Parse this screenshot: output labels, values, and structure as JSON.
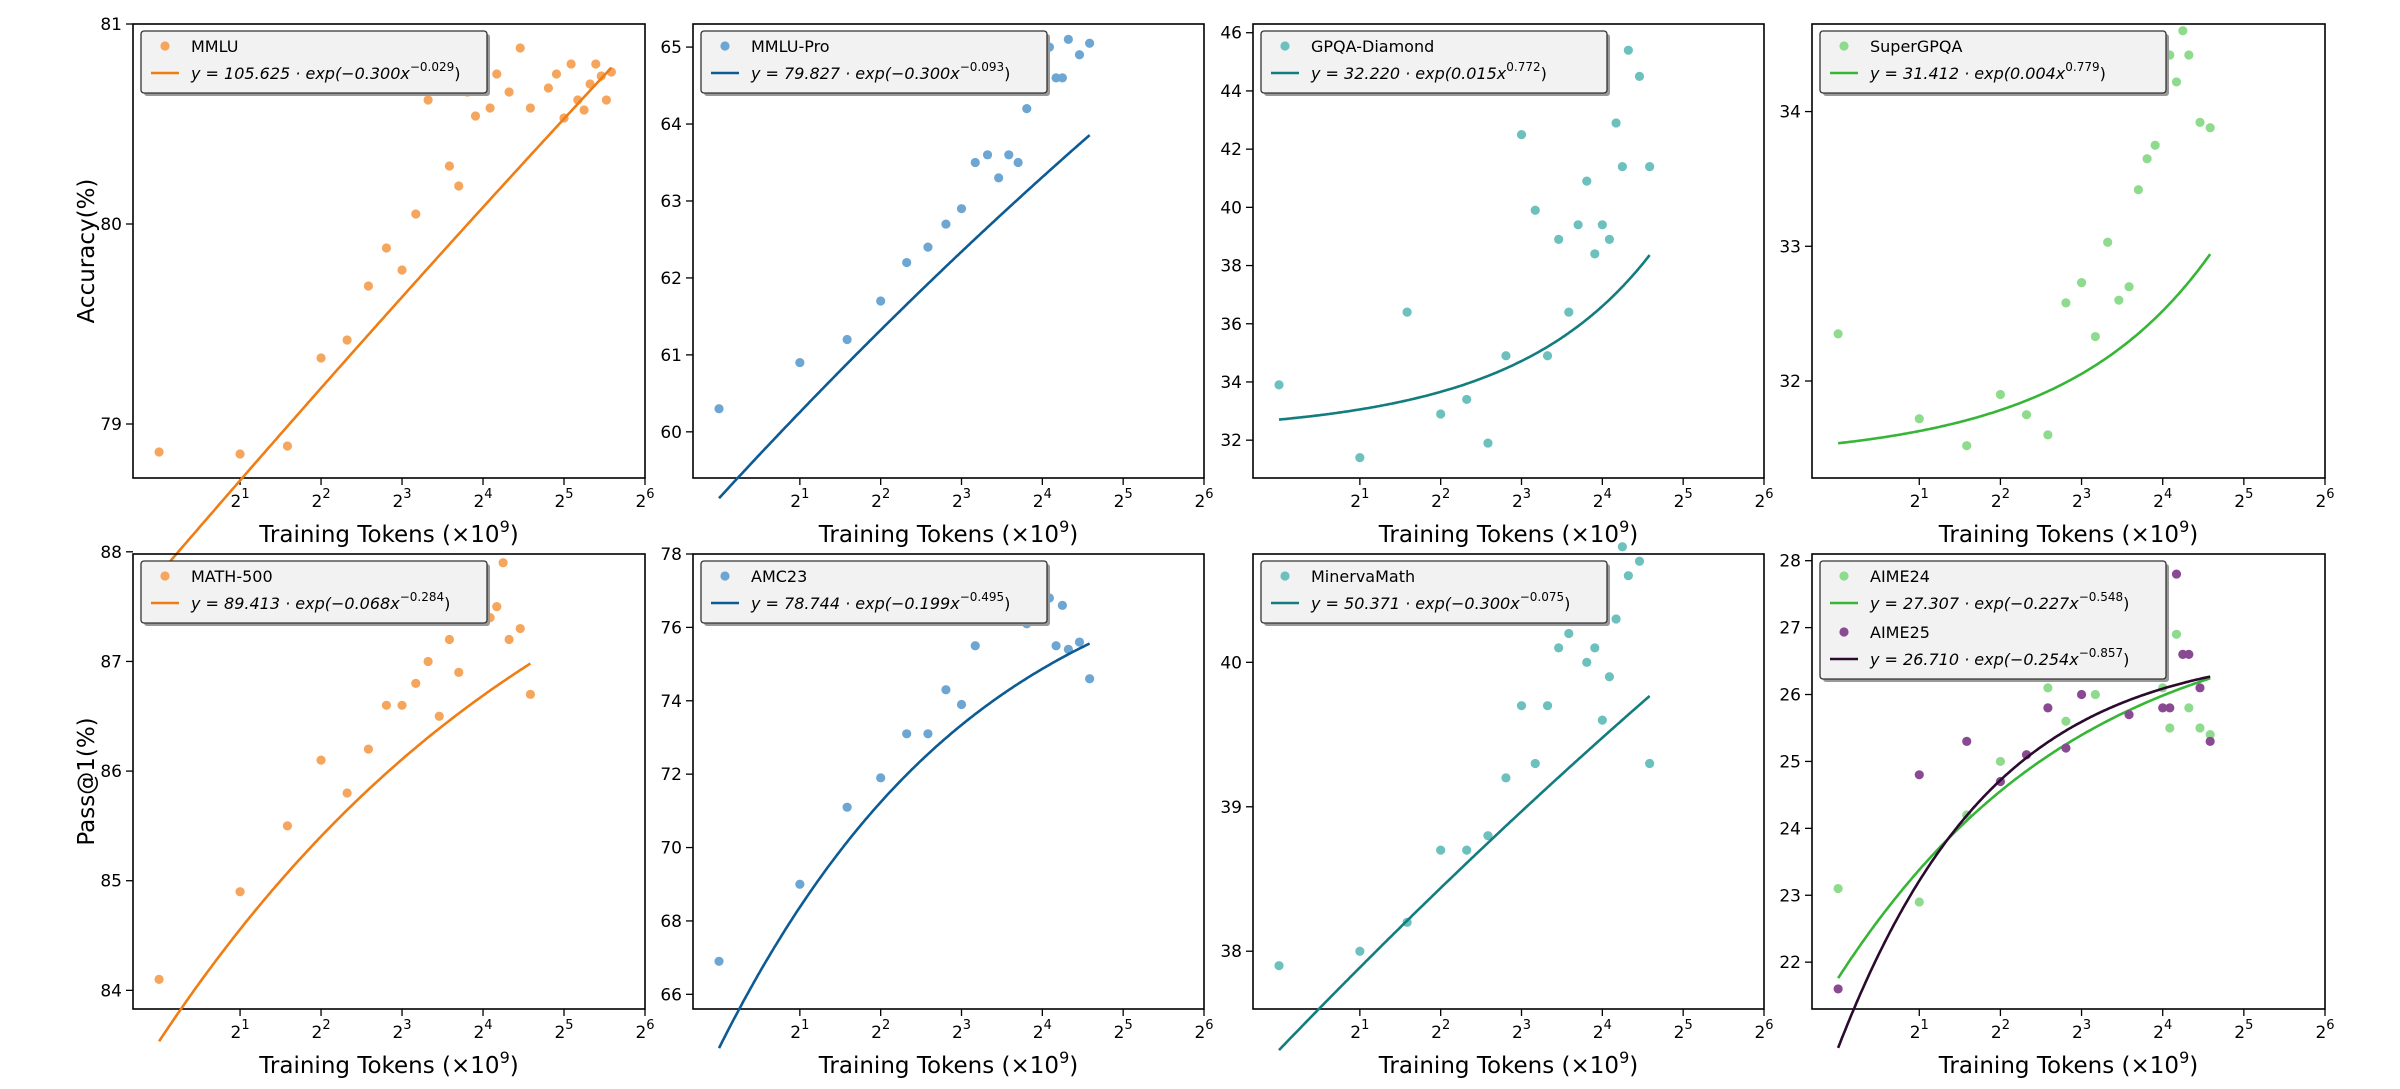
{
  "figure": {
    "x_axis_label": "Training Tokens (×10",
    "x_axis_label_exp": "9",
    "x_axis_label_close": ")",
    "row_y_labels": [
      "Accuracy(%)",
      "Pass@1(%)"
    ]
  },
  "colors": {
    "orange_point": "#f5a55c",
    "orange_line": "#ef7d14",
    "blue_point": "#6da6d2",
    "blue_line": "#0d5b94",
    "teal_point": "#6cc0bd",
    "teal_line": "#127c7e",
    "green_point": "#8edb8e",
    "green_line": "#36b536",
    "purple_point": "#8a4a93",
    "purple_line": "#2b0a2e"
  },
  "chart_data": [
    {
      "type": "scatter",
      "x_scale": "log2",
      "xlim": [
        0.8,
        64
      ],
      "x_ticks": [
        {
          "base": "2",
          "exp": "1"
        },
        {
          "base": "2",
          "exp": "2"
        },
        {
          "base": "2",
          "exp": "3"
        },
        {
          "base": "2",
          "exp": "4"
        },
        {
          "base": "2",
          "exp": "5"
        },
        {
          "base": "2",
          "exp": "6"
        }
      ],
      "ylim": [
        78.73,
        81.0
      ],
      "y_ticks": [
        "79",
        "80",
        "81"
      ],
      "series": [
        {
          "name": "MMLU",
          "color": "#f5a55c",
          "line_color": "#ef7d14",
          "fit": {
            "a": 105.625,
            "b": -0.3,
            "c": -0.029
          },
          "fit_label": {
            "prefix": "y = 105.625 · exp(−0.300x",
            "exp": "−0.029",
            "suffix": ")"
          },
          "x": [
            1.0,
            2.0,
            3.0,
            4.0,
            5.0,
            6.0,
            7.0,
            8.0,
            9.0,
            10.0,
            11.0,
            12.0,
            13.0,
            14.0,
            15.0,
            16.0,
            17.0,
            18.0,
            20.0,
            22.0,
            24.0,
            28.0,
            30.0,
            32.0,
            34.0,
            36.0,
            38.0,
            40.0,
            42.0,
            44.0,
            46.0,
            48.0
          ],
          "y": [
            78.86,
            78.85,
            78.89,
            79.33,
            79.42,
            79.69,
            79.88,
            79.77,
            80.05,
            80.62,
            80.83,
            80.29,
            80.19,
            80.66,
            80.54,
            80.84,
            80.58,
            80.75,
            80.66,
            80.88,
            80.58,
            80.68,
            80.75,
            80.53,
            80.8,
            80.62,
            80.57,
            80.7,
            80.8,
            80.74,
            80.62,
            80.76
          ]
        }
      ]
    },
    {
      "type": "scatter",
      "x_scale": "log2",
      "xlim": [
        0.8,
        64
      ],
      "x_ticks": [
        {
          "base": "2",
          "exp": "1"
        },
        {
          "base": "2",
          "exp": "2"
        },
        {
          "base": "2",
          "exp": "3"
        },
        {
          "base": "2",
          "exp": "4"
        },
        {
          "base": "2",
          "exp": "5"
        },
        {
          "base": "2",
          "exp": "6"
        }
      ],
      "ylim": [
        59.4,
        65.3
      ],
      "y_ticks": [
        "60",
        "61",
        "62",
        "63",
        "64",
        "65"
      ],
      "series": [
        {
          "name": "MMLU-Pro",
          "color": "#6da6d2",
          "line_color": "#0d5b94",
          "fit": {
            "a": 79.827,
            "b": -0.3,
            "c": -0.093
          },
          "fit_label": {
            "prefix": "y = 79.827 · exp(−0.300x",
            "exp": "−0.093",
            "suffix": ")"
          },
          "x": [
            1.0,
            2.0,
            3.0,
            4.0,
            5.0,
            6.0,
            7.0,
            8.0,
            9.0,
            10.0,
            11.0,
            12.0,
            13.0,
            14.0,
            15.0,
            16.0,
            17.0,
            18.0,
            19.0,
            20.0,
            22.0,
            24.0
          ],
          "y": [
            60.3,
            60.9,
            61.2,
            61.7,
            62.2,
            62.4,
            62.7,
            62.9,
            63.5,
            63.6,
            63.3,
            63.6,
            63.5,
            64.2,
            64.5,
            64.8,
            65.0,
            64.6,
            64.6,
            65.1,
            64.9,
            65.05
          ]
        }
      ]
    },
    {
      "type": "scatter",
      "x_scale": "log2",
      "xlim": [
        0.8,
        64
      ],
      "x_ticks": [
        {
          "base": "2",
          "exp": "1"
        },
        {
          "base": "2",
          "exp": "2"
        },
        {
          "base": "2",
          "exp": "3"
        },
        {
          "base": "2",
          "exp": "4"
        },
        {
          "base": "2",
          "exp": "5"
        },
        {
          "base": "2",
          "exp": "6"
        }
      ],
      "ylim": [
        30.7,
        46.3
      ],
      "y_ticks": [
        "32",
        "34",
        "36",
        "38",
        "40",
        "42",
        "44",
        "46"
      ],
      "series": [
        {
          "name": "GPQA-Diamond",
          "color": "#6cc0bd",
          "line_color": "#127c7e",
          "fit": {
            "a": 32.22,
            "b": 0.015,
            "c": 0.772
          },
          "fit_label": {
            "prefix": "y = 32.220 · exp(0.015x",
            "exp": "0.772",
            "suffix": ")"
          },
          "x": [
            1.0,
            2.0,
            3.0,
            4.0,
            5.0,
            6.0,
            7.0,
            8.0,
            9.0,
            10.0,
            11.0,
            12.0,
            13.0,
            14.0,
            15.0,
            16.0,
            17.0,
            18.0,
            19.0,
            20.0,
            22.0,
            24.0
          ],
          "y": [
            33.9,
            31.4,
            36.4,
            32.9,
            33.4,
            31.9,
            34.9,
            42.5,
            39.9,
            34.9,
            38.9,
            36.4,
            39.4,
            40.9,
            38.4,
            39.4,
            38.9,
            42.9,
            41.4,
            45.4,
            44.5,
            41.4
          ]
        }
      ]
    },
    {
      "type": "scatter",
      "x_scale": "log2",
      "xlim": [
        0.8,
        64
      ],
      "x_ticks": [
        {
          "base": "2",
          "exp": "1"
        },
        {
          "base": "2",
          "exp": "2"
        },
        {
          "base": "2",
          "exp": "3"
        },
        {
          "base": "2",
          "exp": "4"
        },
        {
          "base": "2",
          "exp": "5"
        },
        {
          "base": "2",
          "exp": "6"
        }
      ],
      "ylim": [
        31.28,
        34.65
      ],
      "y_ticks": [
        "32",
        "33",
        "34"
      ],
      "series": [
        {
          "name": "SuperGPQA",
          "color": "#8edb8e",
          "line_color": "#36b536",
          "fit": {
            "a": 31.412,
            "b": 0.004,
            "c": 0.779
          },
          "fit_label": {
            "prefix": "y = 31.412 · exp(0.004x",
            "exp": "0.779",
            "suffix": ")"
          },
          "x": [
            1.0,
            2.0,
            3.0,
            4.0,
            5.0,
            6.0,
            7.0,
            8.0,
            9.0,
            10.0,
            11.0,
            12.0,
            13.0,
            14.0,
            15.0,
            16.0,
            17.0,
            18.0,
            19.0,
            20.0,
            22.0,
            24.0
          ],
          "y": [
            32.35,
            31.72,
            31.52,
            31.9,
            31.75,
            31.6,
            32.58,
            32.73,
            32.33,
            33.03,
            32.6,
            32.7,
            33.42,
            33.65,
            33.75,
            34.3,
            34.42,
            34.22,
            34.6,
            34.42,
            33.92,
            33.88
          ]
        }
      ]
    },
    {
      "type": "scatter",
      "x_scale": "log2",
      "xlim": [
        0.8,
        64
      ],
      "x_ticks": [
        {
          "base": "2",
          "exp": "1"
        },
        {
          "base": "2",
          "exp": "2"
        },
        {
          "base": "2",
          "exp": "3"
        },
        {
          "base": "2",
          "exp": "4"
        },
        {
          "base": "2",
          "exp": "5"
        },
        {
          "base": "2",
          "exp": "6"
        }
      ],
      "ylim": [
        83.83,
        87.98
      ],
      "y_ticks": [
        "84",
        "85",
        "86",
        "87",
        "88"
      ],
      "series": [
        {
          "name": "MATH-500",
          "color": "#f5a55c",
          "line_color": "#ef7d14",
          "fit": {
            "a": 89.413,
            "b": -0.068,
            "c": -0.284
          },
          "fit_label": {
            "prefix": "y = 89.413 · exp(−0.068x",
            "exp": "−0.284",
            "suffix": ")"
          },
          "x": [
            1.0,
            2.0,
            3.0,
            4.0,
            5.0,
            6.0,
            7.0,
            8.0,
            9.0,
            10.0,
            11.0,
            12.0,
            13.0,
            14.0,
            15.0,
            16.0,
            17.0,
            18.0,
            19.0,
            20.0,
            22.0,
            24.0
          ],
          "y": [
            84.1,
            84.9,
            85.5,
            86.1,
            85.8,
            86.2,
            86.6,
            86.6,
            86.8,
            87.0,
            86.5,
            87.2,
            86.9,
            87.6,
            87.4,
            87.6,
            87.4,
            87.5,
            87.9,
            87.2,
            87.3,
            86.7
          ]
        }
      ]
    },
    {
      "type": "scatter",
      "x_scale": "log2",
      "xlim": [
        0.8,
        64
      ],
      "x_ticks": [
        {
          "base": "2",
          "exp": "1"
        },
        {
          "base": "2",
          "exp": "2"
        },
        {
          "base": "2",
          "exp": "3"
        },
        {
          "base": "2",
          "exp": "4"
        },
        {
          "base": "2",
          "exp": "5"
        },
        {
          "base": "2",
          "exp": "6"
        }
      ],
      "ylim": [
        65.6,
        78.0
      ],
      "y_ticks": [
        "66",
        "68",
        "70",
        "72",
        "74",
        "76",
        "78"
      ],
      "series": [
        {
          "name": "AMC23",
          "color": "#6da6d2",
          "line_color": "#0d5b94",
          "fit": {
            "a": 78.744,
            "b": -0.199,
            "c": -0.495
          },
          "fit_label": {
            "prefix": "y = 78.744 · exp(−0.199x",
            "exp": "−0.495",
            "suffix": ")"
          },
          "x": [
            1.0,
            2.0,
            3.0,
            4.0,
            5.0,
            6.0,
            7.0,
            8.0,
            9.0,
            10.0,
            11.0,
            12.0,
            13.0,
            14.0,
            15.0,
            16.0,
            17.0,
            18.0,
            19.0,
            20.0,
            22.0,
            24.0
          ],
          "y": [
            66.9,
            69.0,
            71.1,
            71.9,
            73.1,
            73.1,
            74.3,
            73.9,
            75.5,
            76.4,
            77.5,
            76.3,
            77.3,
            76.1,
            77.0,
            77.5,
            76.8,
            75.5,
            76.6,
            75.4,
            75.6,
            74.6
          ]
        }
      ]
    },
    {
      "type": "scatter",
      "x_scale": "log2",
      "xlim": [
        0.8,
        64
      ],
      "x_ticks": [
        {
          "base": "2",
          "exp": "1"
        },
        {
          "base": "2",
          "exp": "2"
        },
        {
          "base": "2",
          "exp": "3"
        },
        {
          "base": "2",
          "exp": "4"
        },
        {
          "base": "2",
          "exp": "5"
        },
        {
          "base": "2",
          "exp": "6"
        }
      ],
      "ylim": [
        37.6,
        40.75
      ],
      "y_ticks": [
        "38",
        "39",
        "40"
      ],
      "series": [
        {
          "name": "MinervaMath",
          "color": "#6cc0bd",
          "line_color": "#127c7e",
          "fit": {
            "a": 50.371,
            "b": -0.3,
            "c": -0.075
          },
          "fit_label": {
            "prefix": "y = 50.371 · exp(−0.300x",
            "exp": "−0.075",
            "suffix": ")"
          },
          "x": [
            1.0,
            2.0,
            3.0,
            4.0,
            5.0,
            6.0,
            7.0,
            8.0,
            9.0,
            10.0,
            11.0,
            12.0,
            13.0,
            14.0,
            15.0,
            16.0,
            17.0,
            18.0,
            19.0,
            20.0,
            22.0,
            24.0
          ],
          "y": [
            37.9,
            38.0,
            38.2,
            38.7,
            38.7,
            38.8,
            39.2,
            39.7,
            39.3,
            39.7,
            40.1,
            40.2,
            40.4,
            40.0,
            40.1,
            39.6,
            39.9,
            40.3,
            40.8,
            40.6,
            40.7,
            39.3
          ]
        }
      ]
    },
    {
      "type": "scatter",
      "x_scale": "log2",
      "xlim": [
        0.8,
        64
      ],
      "x_ticks": [
        {
          "base": "2",
          "exp": "1"
        },
        {
          "base": "2",
          "exp": "2"
        },
        {
          "base": "2",
          "exp": "3"
        },
        {
          "base": "2",
          "exp": "4"
        },
        {
          "base": "2",
          "exp": "5"
        },
        {
          "base": "2",
          "exp": "6"
        }
      ],
      "ylim": [
        21.3,
        28.1
      ],
      "y_ticks": [
        "22",
        "23",
        "24",
        "25",
        "26",
        "27",
        "28"
      ],
      "series": [
        {
          "name": "AIME24",
          "color": "#8edb8e",
          "line_color": "#36b536",
          "fit": {
            "a": 27.307,
            "b": -0.227,
            "c": -0.548
          },
          "fit_label": {
            "prefix": "y = 27.307 · exp(−0.227x",
            "exp": "−0.548",
            "suffix": ")"
          },
          "x": [
            1.0,
            2.0,
            3.0,
            4.0,
            5.0,
            6.0,
            7.0,
            8.0,
            9.0,
            10.0,
            11.0,
            12.0,
            13.0,
            14.0,
            15.0,
            16.0,
            17.0,
            18.0,
            19.0,
            20.0,
            22.0,
            24.0
          ],
          "y": [
            23.1,
            22.9,
            24.2,
            25.0,
            25.1,
            26.1,
            25.6,
            26.4,
            26.0,
            26.4,
            27.9,
            26.6,
            27.8,
            26.5,
            27.2,
            26.1,
            25.5,
            26.9,
            26.6,
            25.8,
            25.5,
            25.4
          ]
        },
        {
          "name": "AIME25",
          "color": "#8a4a93",
          "line_color": "#2b0a2e",
          "fit": {
            "a": 26.71,
            "b": -0.254,
            "c": -0.857
          },
          "fit_label": {
            "prefix": "y = 26.710 · exp(−0.254x",
            "exp": "−0.857",
            "suffix": ")"
          },
          "x": [
            1.0,
            2.0,
            3.0,
            4.0,
            5.0,
            6.0,
            7.0,
            8.0,
            9.0,
            10.0,
            11.0,
            12.0,
            13.0,
            14.0,
            15.0,
            16.0,
            17.0,
            18.0,
            19.0,
            20.0,
            22.0,
            24.0
          ],
          "y": [
            21.6,
            24.8,
            25.3,
            24.7,
            25.1,
            25.8,
            25.2,
            26.0,
            26.7,
            26.4,
            26.3,
            25.7,
            27.2,
            27.0,
            27.2,
            25.8,
            25.8,
            27.8,
            26.6,
            26.6,
            26.1,
            25.3
          ]
        }
      ]
    }
  ]
}
